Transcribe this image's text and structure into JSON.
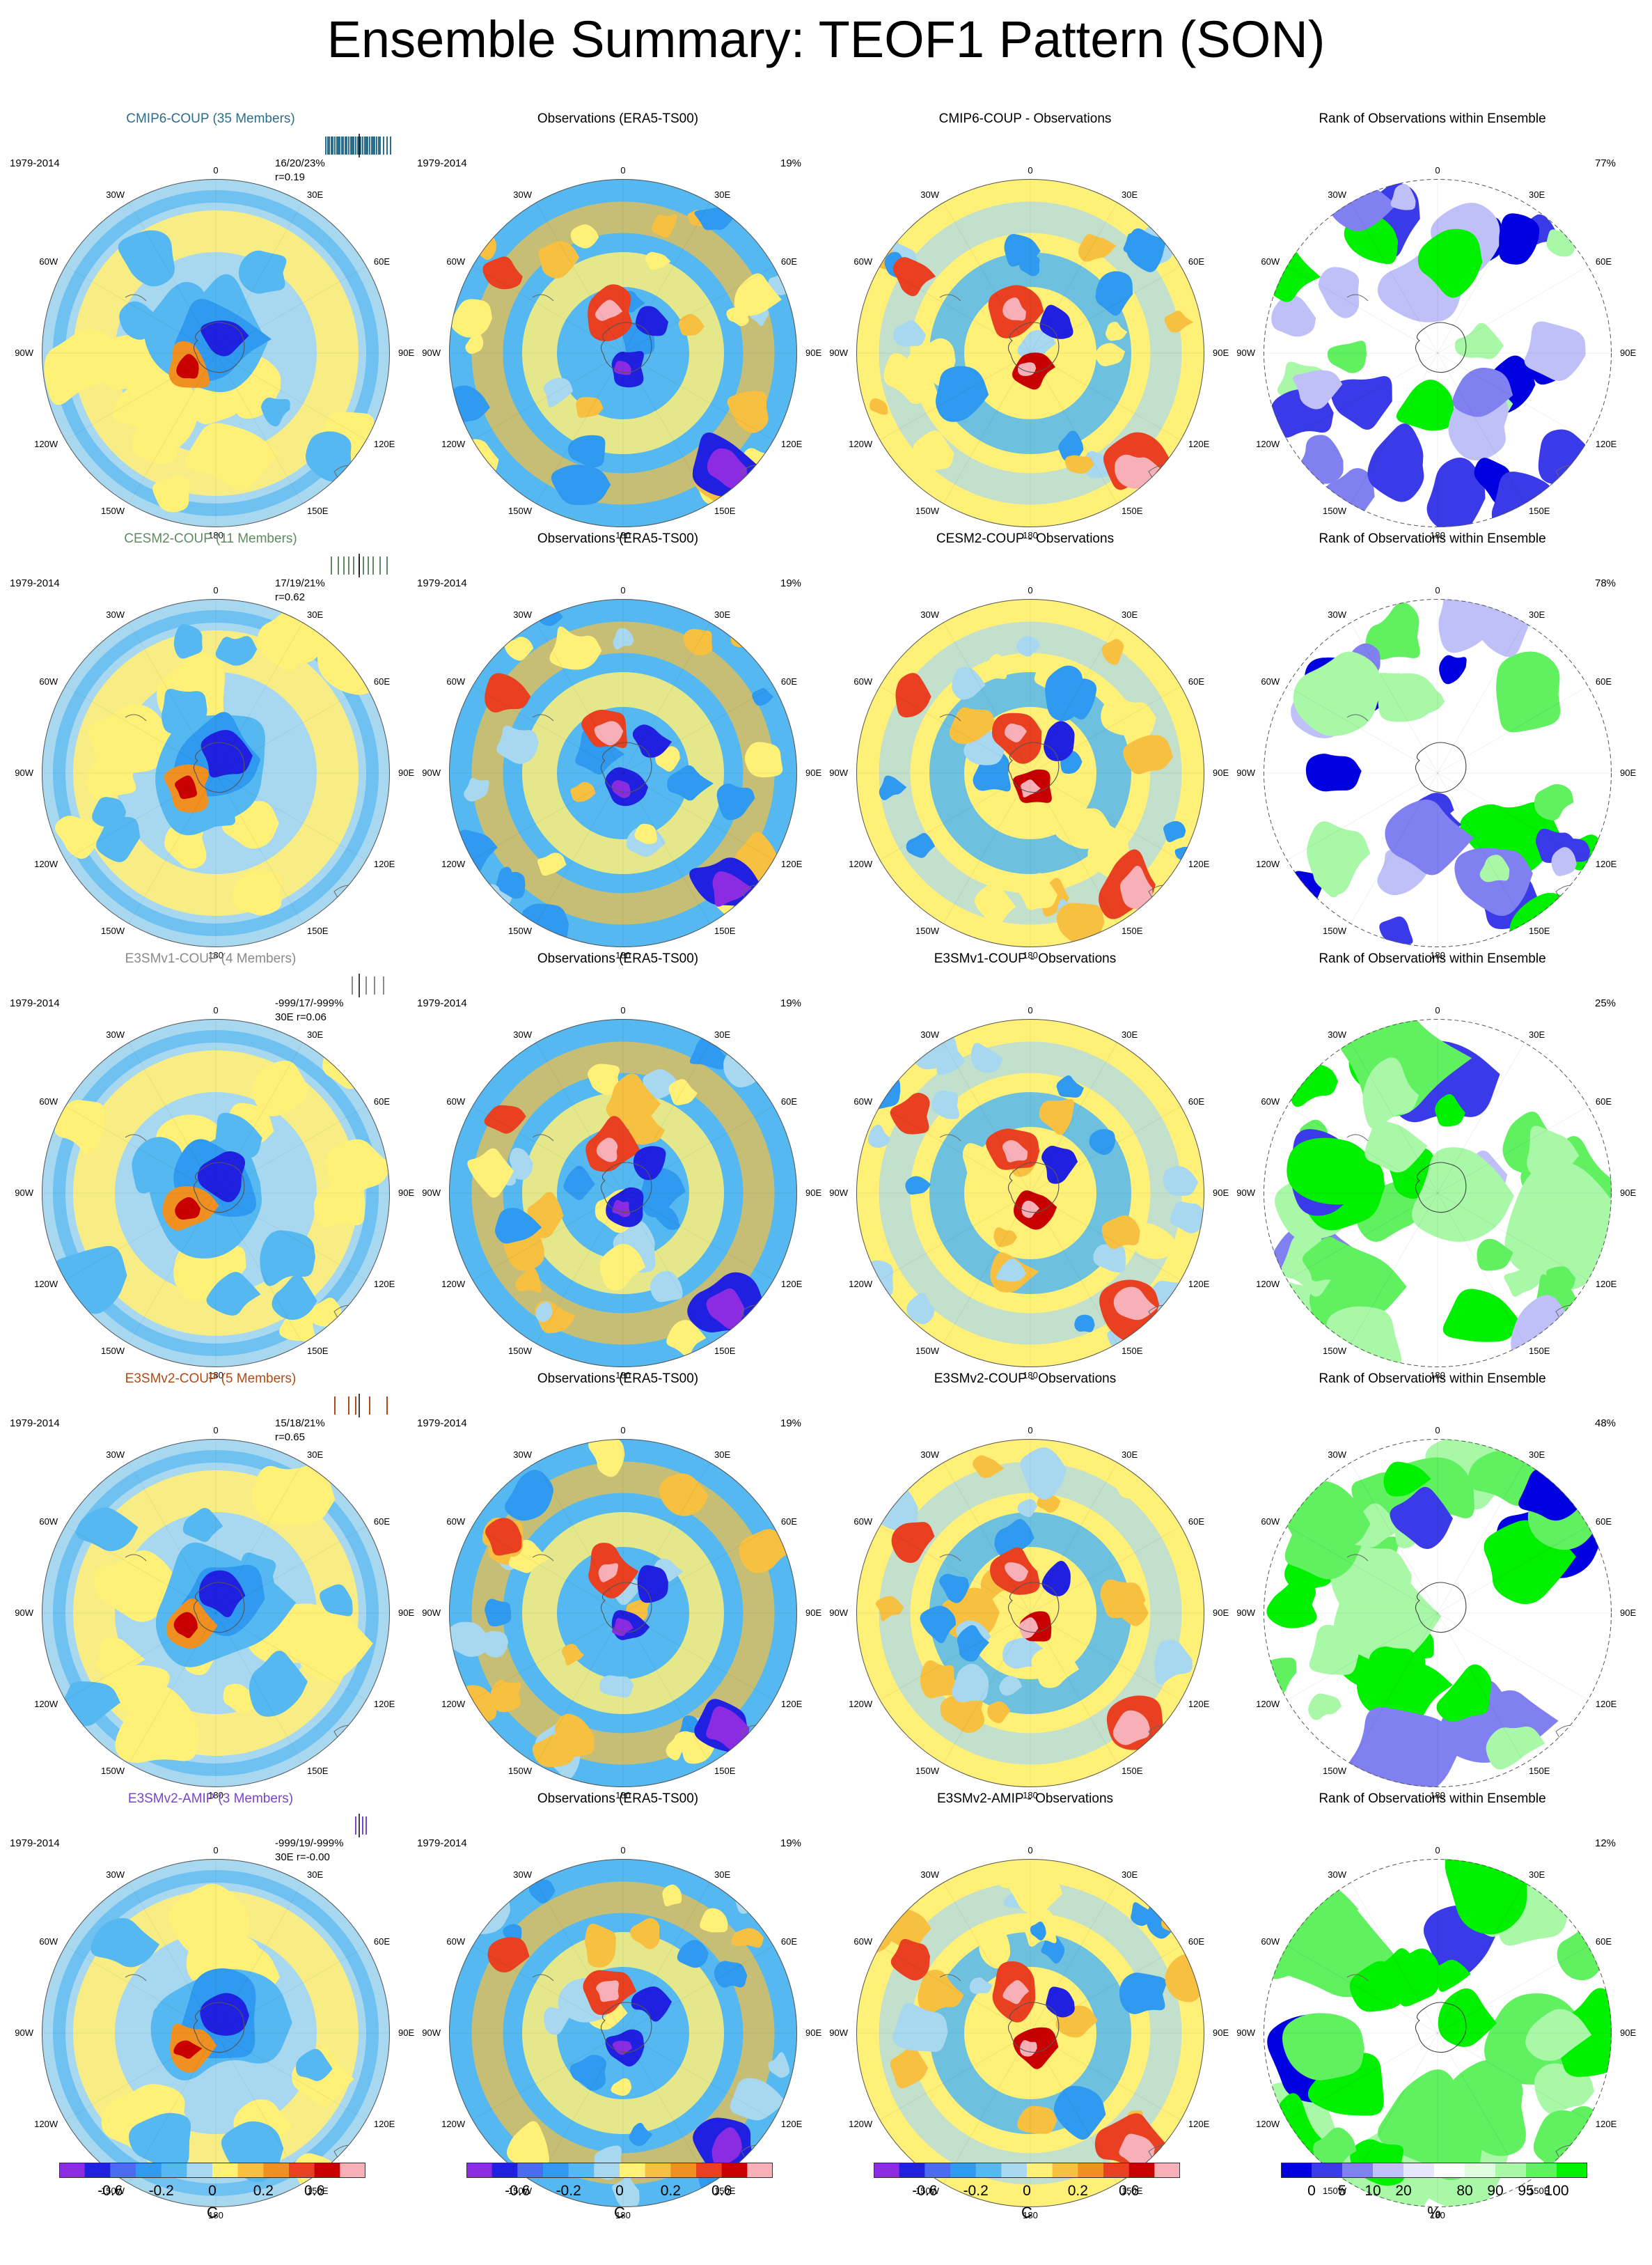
{
  "title": "Ensemble Summary: TEOF1 Pattern (SON)",
  "period": "1979-2014",
  "lon_labels": [
    "0",
    "30E",
    "60E",
    "90E",
    "120E",
    "150E",
    "180",
    "150W",
    "120W",
    "90W",
    "60W",
    "30W"
  ],
  "colors": {
    "diverging": [
      "#8b2be2",
      "#2020e0",
      "#4b6cf0",
      "#2f9af0",
      "#55b8f0",
      "#a8d8f0",
      "#fff078",
      "#f8c040",
      "#f09020",
      "#e84020",
      "#c80000",
      "#f8b0b8"
    ],
    "rank": [
      "#0000e0",
      "#3a3ae8",
      "#8080f0",
      "#c0c0f8",
      "#e6e6fc",
      "#ffffff",
      "#e0fce0",
      "#a8f8a8",
      "#60f060",
      "#00f000"
    ]
  },
  "rows": [
    {
      "model": "CMIP6-COUP (35 Members)",
      "model_color": "#2a6d8c",
      "stats1": "16/20/23%",
      "stats2": "r=0.19",
      "rugs": [
        0.02,
        0.05,
        0.07,
        0.1,
        0.12,
        0.15,
        0.18,
        0.2,
        0.22,
        0.25,
        0.27,
        0.3,
        0.32,
        0.35,
        0.38,
        0.4,
        0.42,
        0.45,
        0.48,
        0.5,
        0.52,
        0.55,
        0.58,
        0.6,
        0.62,
        0.65,
        0.68,
        0.7,
        0.72,
        0.75,
        0.78,
        0.8,
        0.85,
        0.9,
        0.95
      ],
      "obs_title": "Observations (ERA5-TS00)",
      "obs_pct": "19%",
      "diff_title": "CMIP6-COUP - Observations",
      "rank_title": "Rank of Observations within Ensemble",
      "rank_pct": "77%"
    },
    {
      "model": "CESM2-COUP (11 Members)",
      "model_color": "#5f8a5f",
      "stats1": "17/19/21%",
      "stats2": "r=0.62",
      "rugs": [
        0.1,
        0.2,
        0.28,
        0.35,
        0.42,
        0.5,
        0.56,
        0.63,
        0.7,
        0.8,
        0.9
      ],
      "obs_title": "Observations (ERA5-TS00)",
      "obs_pct": "19%",
      "diff_title": "CESM2-COUP - Observations",
      "rank_title": "Rank of Observations within Ensemble",
      "rank_pct": "78%"
    },
    {
      "model": "E3SMv1-COUP (4 Members)",
      "model_color": "#8a8a8a",
      "stats1": "-999/17/-999%",
      "stats2": "30E r=0.06",
      "rugs": [
        0.4,
        0.6,
        0.72,
        0.85
      ],
      "obs_title": "Observations (ERA5-TS00)",
      "obs_pct": "19%",
      "diff_title": "E3SMv1-COUP - Observations",
      "rank_title": "Rank of Observations within Ensemble",
      "rank_pct": "25%"
    },
    {
      "model": "E3SMv2-COUP (5 Members)",
      "model_color": "#b04a14",
      "stats1": "15/18/21%",
      "stats2": "r=0.65",
      "rugs": [
        0.15,
        0.35,
        0.45,
        0.65,
        0.9
      ],
      "obs_title": "Observations (ERA5-TS00)",
      "obs_pct": "19%",
      "diff_title": "E3SMv2-COUP - Observations",
      "rank_title": "Rank of Observations within Ensemble",
      "rank_pct": "48%"
    },
    {
      "model": "E3SMv2-AMIP (3 Members)",
      "model_color": "#7a44c8",
      "stats1": "-999/19/-999%",
      "stats2": "30E r=-0.00",
      "rugs": [
        0.45,
        0.55,
        0.6
      ],
      "obs_title": "Observations (ERA5-TS00)",
      "obs_pct": "19%",
      "diff_title": "E3SMv2-AMIP - Observations",
      "rank_title": "Rank of Observations within Ensemble",
      "rank_pct": "12%"
    }
  ],
  "colorbar": {
    "ticks": [
      "-0.6",
      "-0.2",
      "0",
      "0.2",
      "0.6"
    ],
    "unit": "C"
  },
  "rank_colorbar": {
    "ticks": [
      "0",
      "5",
      "10",
      "20",
      "80",
      "90",
      "95",
      "100"
    ],
    "unit": "%"
  }
}
